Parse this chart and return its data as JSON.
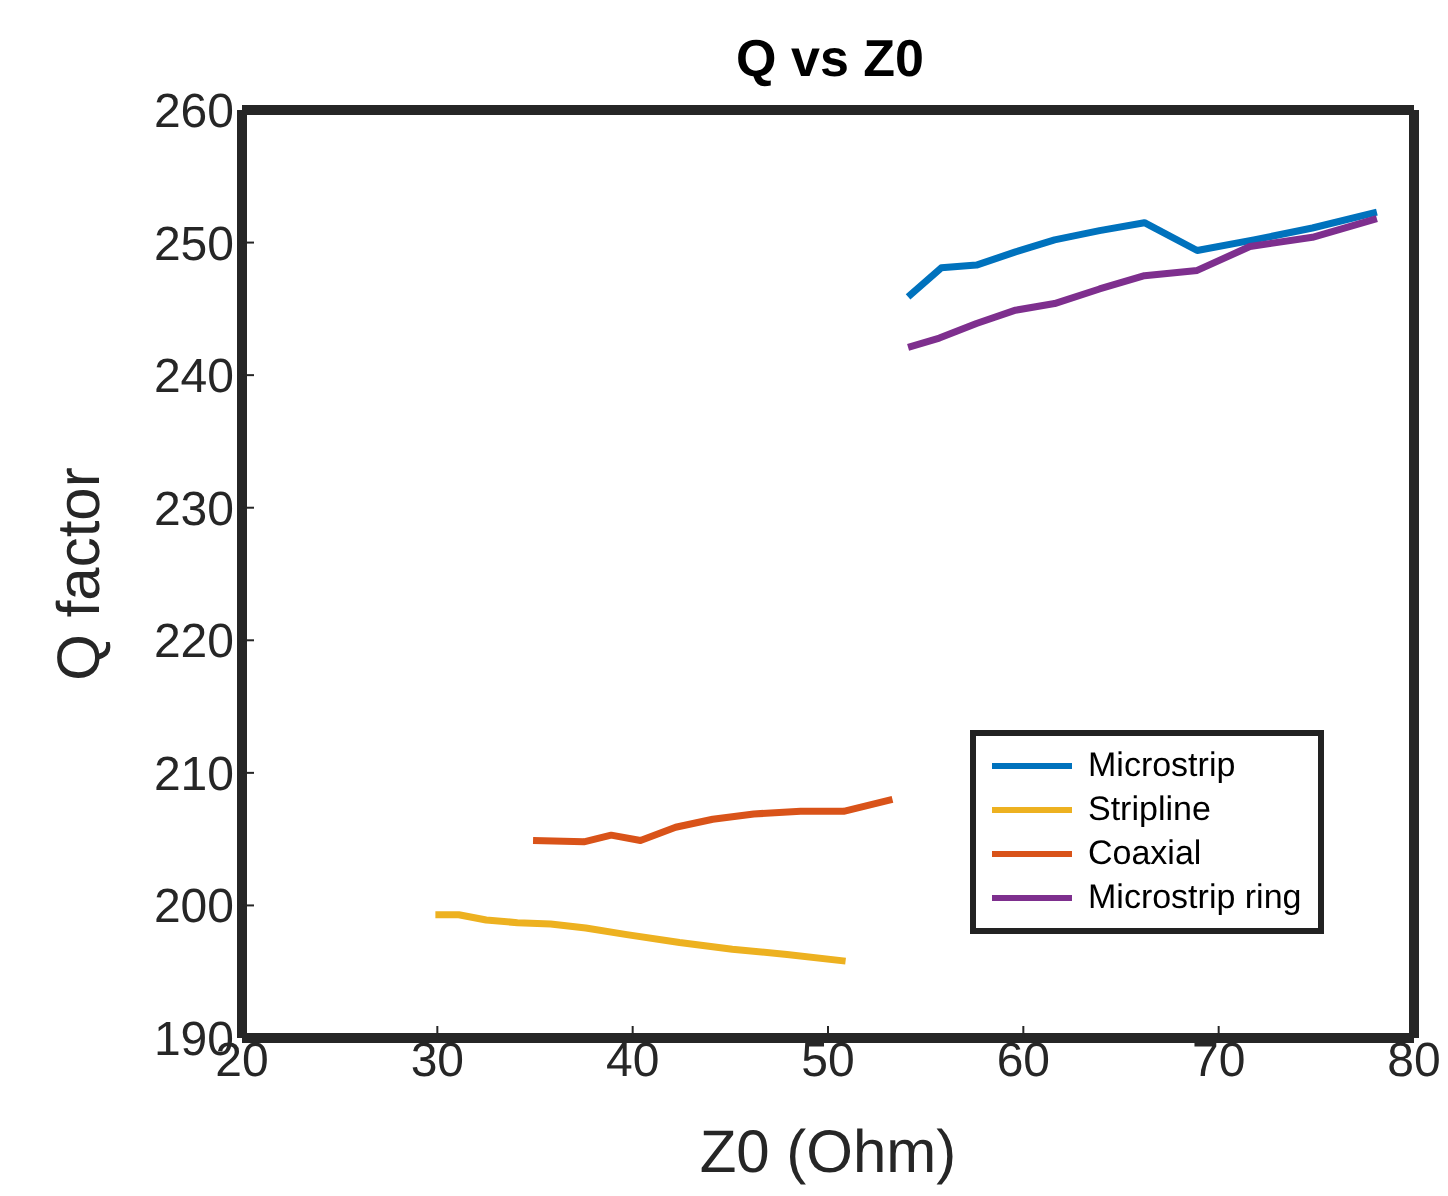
{
  "chart_data": {
    "type": "line",
    "title": "Q vs Z0",
    "xlabel": "Z0 (Ohm)",
    "ylabel": "Q factor",
    "xlim": [
      20,
      80
    ],
    "xticks": [
      20,
      30,
      40,
      50,
      60,
      70,
      80
    ],
    "ylim": [
      190,
      260
    ],
    "yticks": [
      190,
      200,
      210,
      220,
      230,
      240,
      250,
      260
    ],
    "grid": false,
    "legend": "bottom right",
    "marker": "none",
    "line_style": "solid",
    "series": [
      {
        "name": "Microstrip",
        "color": "#0072bd",
        "x": [
          54.1,
          55.8,
          57.6,
          59.6,
          61.6,
          63.9,
          66.2,
          68.9,
          71.8,
          74.8,
          78.1
        ],
        "values": [
          245.9,
          248.1,
          248.3,
          249.3,
          250.2,
          250.9,
          251.5,
          249.4,
          250.2,
          251.1,
          252.3
        ]
      },
      {
        "name": "Stripline",
        "color": "#edb120",
        "x": [
          29.9,
          31.1,
          32.5,
          34.1,
          35.8,
          37.6,
          39.7,
          42.4,
          45.1,
          47.9,
          50.9
        ],
        "values": [
          199.3,
          199.3,
          198.9,
          198.7,
          198.6,
          198.3,
          197.8,
          197.2,
          196.7,
          196.3,
          195.8
        ]
      },
      {
        "name": "Coaxial",
        "color": "#d95319",
        "x": [
          34.9,
          37.5,
          38.9,
          40.4,
          42.2,
          44.1,
          46.2,
          48.6,
          50.8,
          53.3
        ],
        "values": [
          204.9,
          204.8,
          205.3,
          204.9,
          205.9,
          206.5,
          206.9,
          207.1,
          207.1,
          208.0
        ]
      },
      {
        "name": "Microstrip ring",
        "color": "#7e2f8e",
        "x": [
          54.1,
          55.7,
          57.6,
          59.6,
          61.6,
          63.9,
          66.2,
          68.9,
          71.6,
          74.8,
          78.1
        ],
        "values": [
          242.1,
          242.8,
          243.9,
          244.9,
          245.4,
          246.5,
          247.5,
          247.9,
          249.7,
          250.4,
          251.8
        ]
      }
    ]
  }
}
